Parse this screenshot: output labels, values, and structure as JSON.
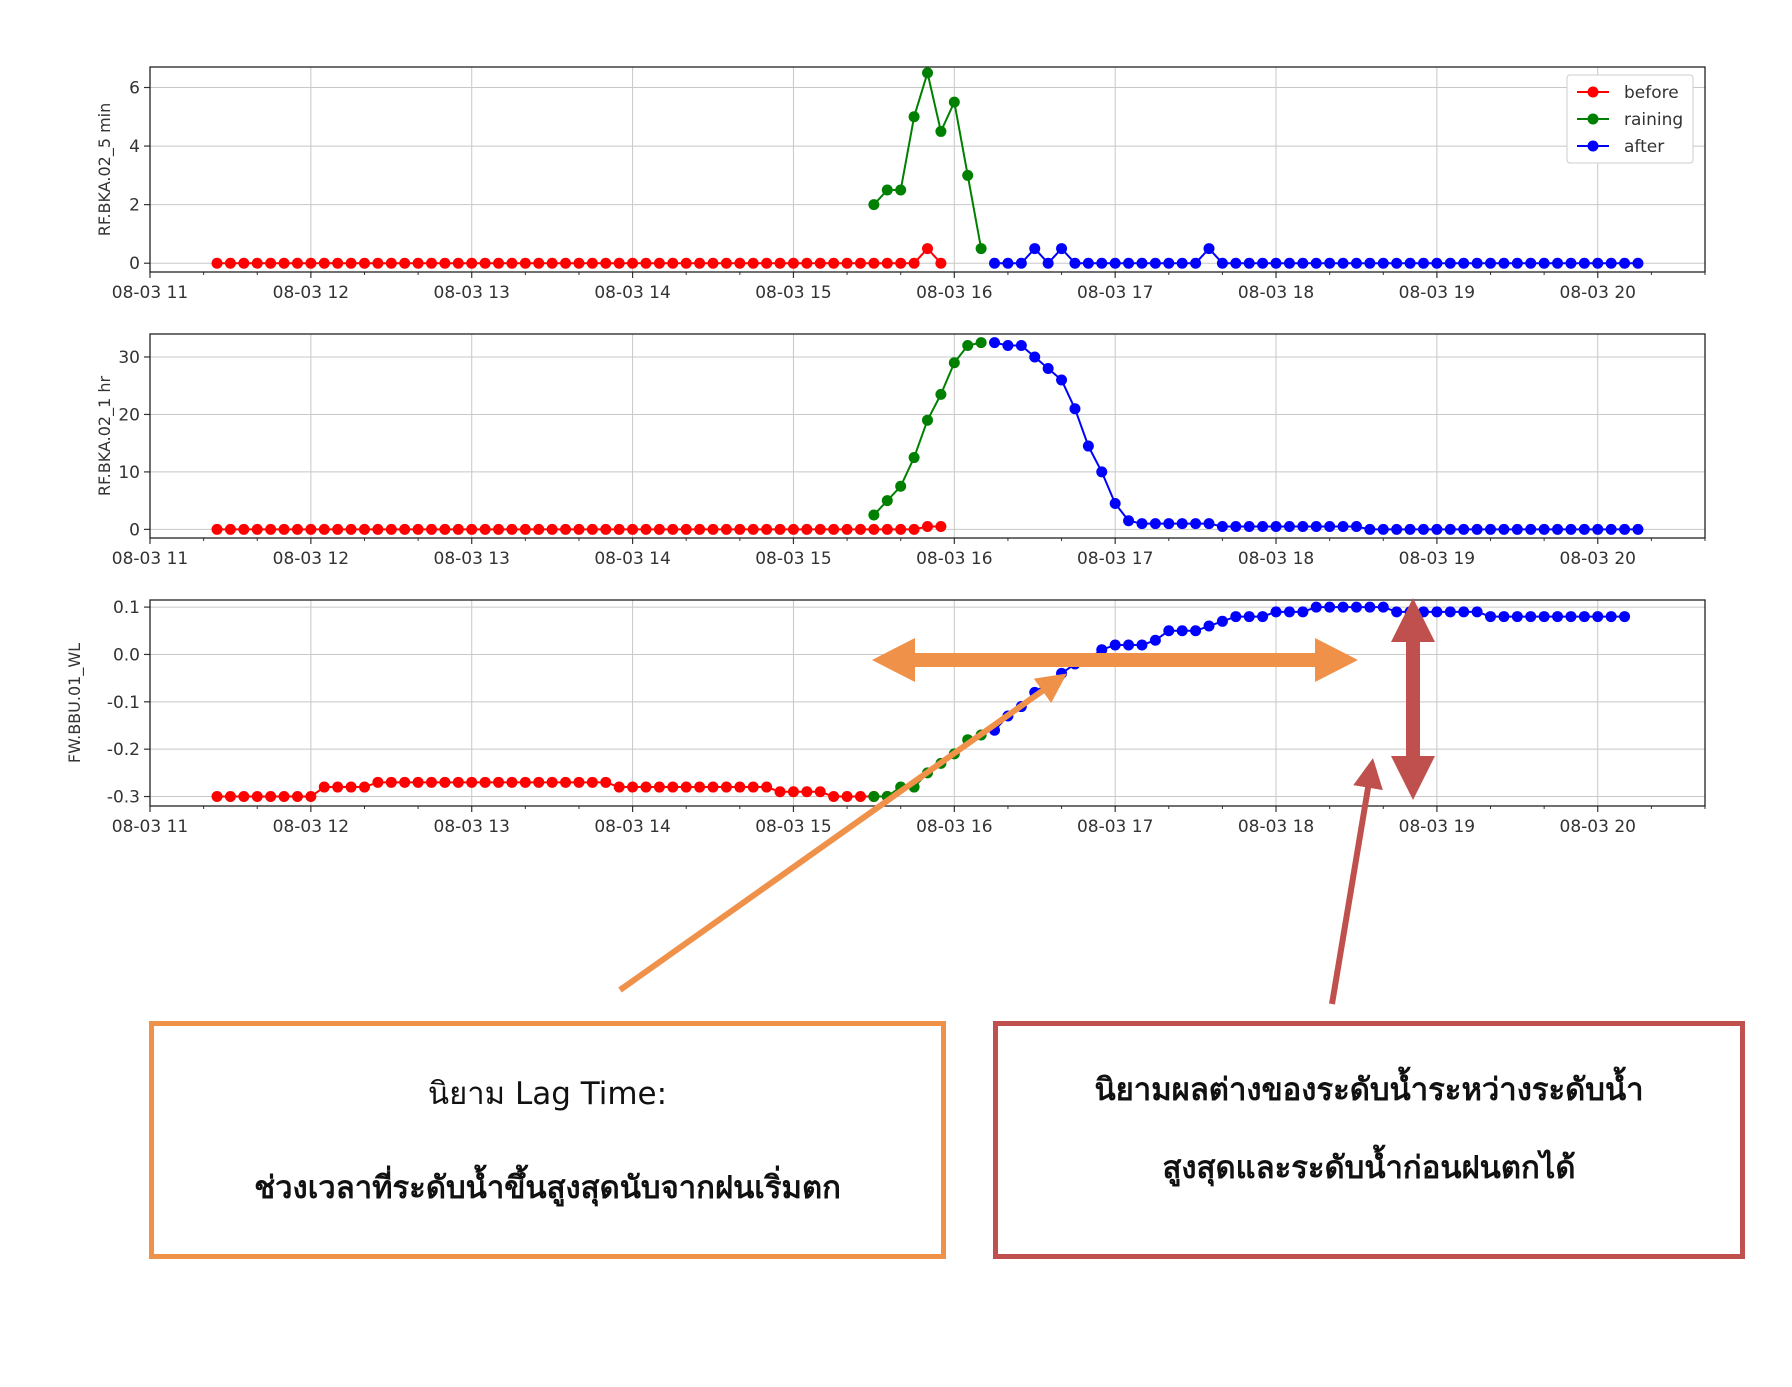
{
  "chart_data": [
    {
      "type": "line",
      "ylabel": "RF.BKA.02_5 min",
      "x_ticks": [
        "08-03 11",
        "08-03 12",
        "08-03 13",
        "08-03 14",
        "08-03 15",
        "08-03 16",
        "08-03 17",
        "08-03 18",
        "08-03 19",
        "08-03 20"
      ],
      "y_ticks": [
        "0",
        "2",
        "4",
        "6"
      ],
      "xlim": [
        "08-03 11:00",
        "08-03 20:40"
      ],
      "ylim": [
        -0.3,
        6.7
      ],
      "grid": true,
      "legend": {
        "placement": "top-right",
        "entries": [
          "before",
          "raining",
          "after"
        ]
      },
      "series": [
        {
          "name": "before",
          "color": "#ff0000",
          "start": "08-03 11:25",
          "step_min": 5,
          "values": [
            0,
            0,
            0,
            0,
            0,
            0,
            0,
            0,
            0,
            0,
            0,
            0,
            0,
            0,
            0,
            0,
            0,
            0,
            0,
            0,
            0,
            0,
            0,
            0,
            0,
            0,
            0,
            0,
            0,
            0,
            0,
            0,
            0,
            0,
            0,
            0,
            0,
            0,
            0,
            0,
            0,
            0,
            0,
            0,
            0,
            0,
            0,
            0,
            0,
            0,
            0,
            0,
            0,
            0.5,
            0
          ]
        },
        {
          "name": "raining",
          "color": "#008000",
          "start": "08-03 15:30",
          "step_min": 5,
          "values": [
            2,
            2.5,
            2.5,
            5,
            6.5,
            4.5,
            5.5,
            3,
            0.5
          ]
        },
        {
          "name": "after",
          "color": "#0000ff",
          "start": "08-03 16:15",
          "step_min": 5,
          "values": [
            0,
            0,
            0,
            0.5,
            0,
            0.5,
            0,
            0,
            0,
            0,
            0,
            0,
            0,
            0,
            0,
            0,
            0.5,
            0,
            0,
            0,
            0,
            0,
            0,
            0,
            0,
            0,
            0,
            0,
            0,
            0,
            0,
            0,
            0,
            0,
            0,
            0,
            0,
            0,
            0,
            0,
            0,
            0,
            0,
            0,
            0,
            0,
            0,
            0,
            0
          ]
        }
      ]
    },
    {
      "type": "line",
      "ylabel": "RF.BKA.02_1 hr",
      "x_ticks": [
        "08-03 11",
        "08-03 12",
        "08-03 13",
        "08-03 14",
        "08-03 15",
        "08-03 16",
        "08-03 17",
        "08-03 18",
        "08-03 19",
        "08-03 20"
      ],
      "y_ticks": [
        "0",
        "10",
        "20",
        "30"
      ],
      "xlim": [
        "08-03 11:00",
        "08-03 20:40"
      ],
      "ylim": [
        -1.5,
        34
      ],
      "grid": true,
      "series": [
        {
          "name": "before",
          "color": "#ff0000",
          "start": "08-03 11:25",
          "step_min": 5,
          "values": [
            0,
            0,
            0,
            0,
            0,
            0,
            0,
            0,
            0,
            0,
            0,
            0,
            0,
            0,
            0,
            0,
            0,
            0,
            0,
            0,
            0,
            0,
            0,
            0,
            0,
            0,
            0,
            0,
            0,
            0,
            0,
            0,
            0,
            0,
            0,
            0,
            0,
            0,
            0,
            0,
            0,
            0,
            0,
            0,
            0,
            0,
            0,
            0,
            0,
            0,
            0,
            0,
            0,
            0.5,
            0.5
          ]
        },
        {
          "name": "raining",
          "color": "#008000",
          "start": "08-03 15:30",
          "step_min": 5,
          "values": [
            2.5,
            5,
            7.5,
            12.5,
            19,
            23.5,
            29,
            32,
            32.5
          ]
        },
        {
          "name": "after",
          "color": "#0000ff",
          "start": "08-03 16:15",
          "step_min": 5,
          "values": [
            32.5,
            32,
            32,
            30,
            28,
            26,
            21,
            14.5,
            10,
            4.5,
            1.5,
            1,
            1,
            1,
            1,
            1,
            1,
            0.5,
            0.5,
            0.5,
            0.5,
            0.5,
            0.5,
            0.5,
            0.5,
            0.5,
            0.5,
            0.5,
            0,
            0,
            0,
            0,
            0,
            0,
            0,
            0,
            0,
            0,
            0,
            0,
            0,
            0,
            0,
            0,
            0,
            0,
            0,
            0,
            0
          ]
        }
      ]
    },
    {
      "type": "line",
      "ylabel": "FW.BBU.01_WL",
      "x_ticks": [
        "08-03 11",
        "08-03 12",
        "08-03 13",
        "08-03 14",
        "08-03 15",
        "08-03 16",
        "08-03 17",
        "08-03 18",
        "08-03 19",
        "08-03 20"
      ],
      "y_ticks": [
        "0.1",
        "0.0",
        "-0.1",
        "-0.2",
        "-0.3"
      ],
      "xlim": [
        "08-03 11:00",
        "08-03 20:40"
      ],
      "ylim": [
        -0.32,
        0.115
      ],
      "grid": true,
      "series": [
        {
          "name": "before",
          "color": "#ff0000",
          "start": "08-03 11:25",
          "step_min": 5,
          "values": [
            -0.3,
            -0.3,
            -0.3,
            -0.3,
            -0.3,
            -0.3,
            -0.3,
            -0.3,
            -0.28,
            -0.28,
            -0.28,
            -0.28,
            -0.27,
            -0.27,
            -0.27,
            -0.27,
            -0.27,
            -0.27,
            -0.27,
            -0.27,
            -0.27,
            -0.27,
            -0.27,
            -0.27,
            -0.27,
            -0.27,
            -0.27,
            -0.27,
            -0.27,
            -0.27,
            -0.28,
            -0.28,
            -0.28,
            -0.28,
            -0.28,
            -0.28,
            -0.28,
            -0.28,
            -0.28,
            -0.28,
            -0.28,
            -0.28,
            -0.29,
            -0.29,
            -0.29,
            -0.29,
            -0.3,
            -0.3,
            -0.3,
            -0.3,
            -0.3
          ]
        },
        {
          "name": "raining",
          "color": "#008000",
          "start": "08-03 15:30",
          "step_min": 5,
          "values": [
            -0.3,
            -0.3,
            -0.28,
            -0.28,
            -0.25,
            -0.23,
            -0.21,
            -0.18,
            -0.17
          ]
        },
        {
          "name": "after",
          "color": "#0000ff",
          "start": "08-03 16:15",
          "step_min": 5,
          "values": [
            -0.16,
            -0.13,
            -0.11,
            -0.08,
            -0.06,
            -0.04,
            -0.02,
            -0.01,
            0.01,
            0.02,
            0.02,
            0.02,
            0.03,
            0.05,
            0.05,
            0.05,
            0.06,
            0.07,
            0.08,
            0.08,
            0.08,
            0.09,
            0.09,
            0.09,
            0.1,
            0.1,
            0.1,
            0.1,
            0.1,
            0.1,
            0.09,
            0.09,
            0.09,
            0.09,
            0.09,
            0.09,
            0.09,
            0.08,
            0.08,
            0.08,
            0.08,
            0.08,
            0.08,
            0.08,
            0.08,
            0.08,
            0.08,
            0.08
          ]
        }
      ]
    }
  ],
  "annotations": {
    "lag_box": {
      "line1": "นิยาม Lag Time:",
      "line2": "ช่วงเวลาที่ระดับน้ำขึ้นสูงสุดนับจากฝนเริ่มตก",
      "color": "#f0914a"
    },
    "diff_box": {
      "line1": "นิยามผลต่างของระดับน้ำระหว่างระดับน้ำ",
      "line2": "สูงสุดและระดับน้ำก่อนฝนตกได้",
      "color": "#c0504d"
    }
  }
}
